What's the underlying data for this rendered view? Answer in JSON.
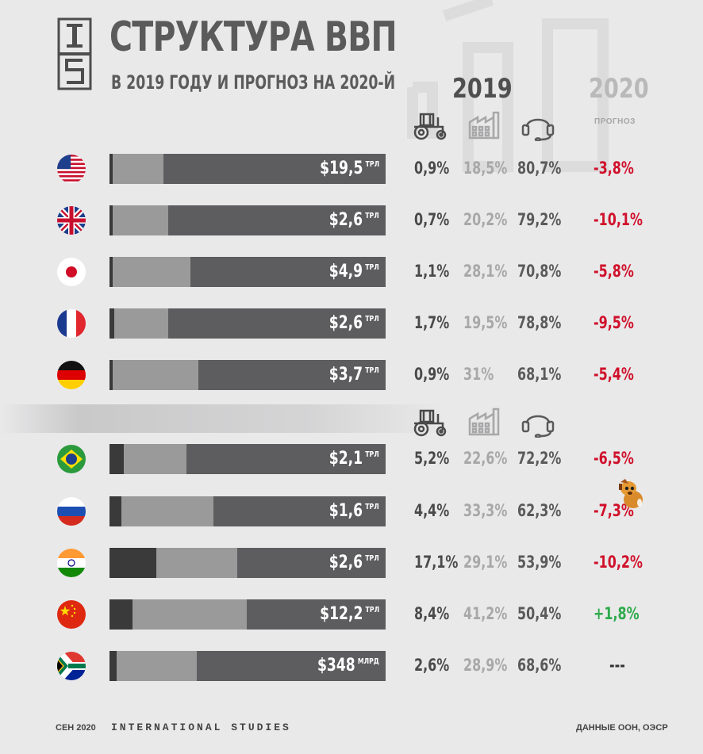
{
  "header": {
    "logo_text": "IS",
    "title": "СТРУКТУРА ВВП",
    "subtitle": "В 2019 ГОДУ И ПРОГНОЗ НА 2020-Й",
    "year_2019": "2019",
    "year_2020": "2020",
    "forecast_label": "ПРОГНОЗ"
  },
  "icons": {
    "agriculture": "tractor-icon",
    "industry": "factory-icon",
    "services": "headset-icon"
  },
  "colors": {
    "background": "#e9e9ea",
    "agriculture": "#3a3a3b",
    "industry": "#9a9a9b",
    "services": "#5d5d5f",
    "forecast_negative": "#d0112b",
    "forecast_positive": "#2eaa4a",
    "forecast_neutral": "#333333"
  },
  "chart_data": {
    "type": "bar",
    "orientation": "horizontal-stacked",
    "title": "СТРУКТУРА ВВП",
    "subtitle": "В 2019 ГОДУ И ПРОГНОЗ НА 2020-Й",
    "series": [
      {
        "key": "agriculture",
        "icon": "tractor-icon"
      },
      {
        "key": "industry",
        "icon": "factory-icon"
      },
      {
        "key": "services",
        "icon": "headset-icon"
      }
    ],
    "groups": [
      {
        "rows": [
          {
            "country_flag": "usa-flag",
            "gdp_value": "$19,5",
            "gdp_unit": "ТРЛ",
            "agriculture": 0.9,
            "industry": 18.5,
            "services": 80.7,
            "agri_label": "0,9%",
            "ind_label": "18,5%",
            "srv_label": "80,7%",
            "forecast": -3.8,
            "forecast_label": "-3,8%"
          },
          {
            "country_flag": "uk-flag",
            "gdp_value": "$2,6",
            "gdp_unit": "ТРЛ",
            "agriculture": 0.7,
            "industry": 20.2,
            "services": 79.2,
            "agri_label": "0,7%",
            "ind_label": "20,2%",
            "srv_label": "79,2%",
            "forecast": -10.1,
            "forecast_label": "-10,1%"
          },
          {
            "country_flag": "japan-flag",
            "gdp_value": "$4,9",
            "gdp_unit": "ТРЛ",
            "agriculture": 1.1,
            "industry": 28.1,
            "services": 70.8,
            "agri_label": "1,1%",
            "ind_label": "28,1%",
            "srv_label": "70,8%",
            "forecast": -5.8,
            "forecast_label": "-5,8%"
          },
          {
            "country_flag": "france-flag",
            "gdp_value": "$2,6",
            "gdp_unit": "ТРЛ",
            "agriculture": 1.7,
            "industry": 19.5,
            "services": 78.8,
            "agri_label": "1,7%",
            "ind_label": "19,5%",
            "srv_label": "78,8%",
            "forecast": -9.5,
            "forecast_label": "-9,5%"
          },
          {
            "country_flag": "germany-flag",
            "gdp_value": "$3,7",
            "gdp_unit": "ТРЛ",
            "agriculture": 0.9,
            "industry": 31,
            "services": 68.1,
            "agri_label": "0,9%",
            "ind_label": "31%",
            "srv_label": "68,1%",
            "forecast": -5.4,
            "forecast_label": "-5,4%"
          }
        ]
      },
      {
        "rows": [
          {
            "country_flag": "brazil-flag",
            "gdp_value": "$2,1",
            "gdp_unit": "ТРЛ",
            "agriculture": 5.2,
            "industry": 22.6,
            "services": 72.2,
            "agri_label": "5,2%",
            "ind_label": "22,6%",
            "srv_label": "72,2%",
            "forecast": -6.5,
            "forecast_label": "-6,5%"
          },
          {
            "country_flag": "russia-flag",
            "gdp_value": "$1,6",
            "gdp_unit": "ТРЛ",
            "agriculture": 4.4,
            "industry": 33.3,
            "services": 62.3,
            "agri_label": "4,4%",
            "ind_label": "33,3%",
            "srv_label": "62,3%",
            "forecast": -7.3,
            "forecast_label": "-7,3%"
          },
          {
            "country_flag": "india-flag",
            "gdp_value": "$2,6",
            "gdp_unit": "ТРЛ",
            "agriculture": 17.1,
            "industry": 29.1,
            "services": 53.9,
            "agri_label": "17,1%",
            "ind_label": "29,1%",
            "srv_label": "53,9%",
            "forecast": -10.2,
            "forecast_label": "-10,2%"
          },
          {
            "country_flag": "china-flag",
            "gdp_value": "$12,2",
            "gdp_unit": "ТРЛ",
            "agriculture": 8.4,
            "industry": 41.2,
            "services": 50.4,
            "agri_label": "8,4%",
            "ind_label": "41,2%",
            "srv_label": "50,4%",
            "forecast": 1.8,
            "forecast_label": "+1,8%"
          },
          {
            "country_flag": "south-africa-flag",
            "gdp_value": "$348",
            "gdp_unit": "МЛРД",
            "agriculture": 2.6,
            "industry": 28.9,
            "services": 68.6,
            "agri_label": "2,6%",
            "ind_label": "28,9%",
            "srv_label": "68,6%",
            "forecast": null,
            "forecast_label": "---"
          }
        ]
      }
    ]
  },
  "footer": {
    "date": "СЕН 2020",
    "brand": "INTERNATIONAL STUDIES",
    "source": "ДАННЫЕ ООН, ОЭСР"
  }
}
